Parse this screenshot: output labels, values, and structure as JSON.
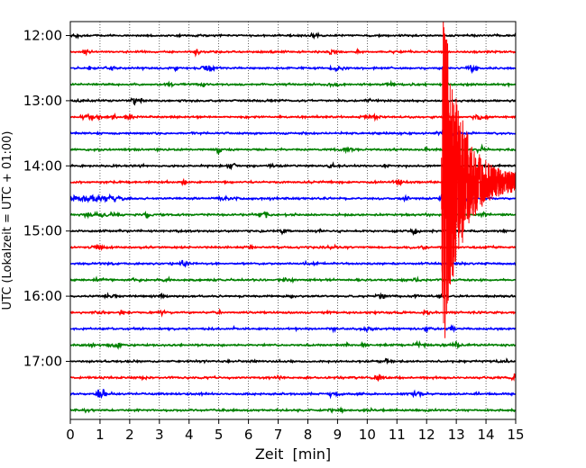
{
  "chart_data": {
    "type": "line",
    "title": "",
    "xlabel": "Zeit  [min]",
    "ylabel": "UTC (Lokalzeit = UTC + 01:00)",
    "xlim": [
      0,
      15
    ],
    "x_ticks": [
      0,
      1,
      2,
      3,
      4,
      5,
      6,
      7,
      8,
      9,
      10,
      11,
      12,
      13,
      14,
      15
    ],
    "y_tick_labels": [
      "12:00",
      "13:00",
      "14:00",
      "15:00",
      "16:00",
      "17:00"
    ],
    "x_grid": true,
    "trace_interval_min": 15,
    "trace_colors": [
      "#000000",
      "#ff0000",
      "#0000ff",
      "#008000"
    ],
    "traces": [
      {
        "start": "12:00",
        "color": "#000000"
      },
      {
        "start": "12:15",
        "color": "#ff0000"
      },
      {
        "start": "12:30",
        "color": "#0000ff"
      },
      {
        "start": "12:45",
        "color": "#008000"
      },
      {
        "start": "13:00",
        "color": "#000000"
      },
      {
        "start": "13:15",
        "color": "#ff0000"
      },
      {
        "start": "13:30",
        "color": "#0000ff"
      },
      {
        "start": "13:45",
        "color": "#008000"
      },
      {
        "start": "14:00",
        "color": "#000000"
      },
      {
        "start": "14:15",
        "color": "#ff0000"
      },
      {
        "start": "14:30",
        "color": "#0000ff"
      },
      {
        "start": "14:45",
        "color": "#008000"
      },
      {
        "start": "15:00",
        "color": "#000000"
      },
      {
        "start": "15:15",
        "color": "#ff0000"
      },
      {
        "start": "15:30",
        "color": "#0000ff"
      },
      {
        "start": "15:45",
        "color": "#008000"
      },
      {
        "start": "16:00",
        "color": "#000000"
      },
      {
        "start": "16:15",
        "color": "#ff0000"
      },
      {
        "start": "16:30",
        "color": "#0000ff"
      },
      {
        "start": "16:45",
        "color": "#008000"
      },
      {
        "start": "17:00",
        "color": "#000000"
      },
      {
        "start": "17:15",
        "color": "#ff0000"
      },
      {
        "start": "17:30",
        "color": "#0000ff"
      },
      {
        "start": "17:45",
        "color": "#008000"
      }
    ],
    "event": {
      "trace_start": "14:15",
      "onset_min": 12.5,
      "end_min": 15,
      "color": "#ff0000"
    }
  }
}
